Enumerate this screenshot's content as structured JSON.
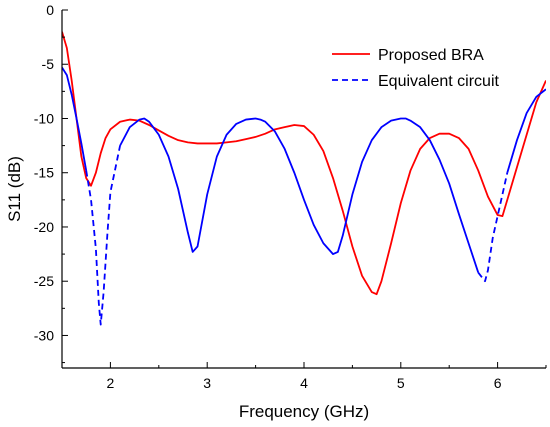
{
  "chart_data": {
    "type": "line",
    "title": "",
    "xlabel": "Frequency (GHz)",
    "ylabel": "S11 (dB)",
    "xlim": [
      1.5,
      6.5
    ],
    "ylim": [
      -33,
      0
    ],
    "xticks": [
      2,
      3,
      4,
      5,
      6
    ],
    "yticks": [
      0,
      -5,
      -10,
      -15,
      -20,
      -25,
      -30
    ],
    "grid": false,
    "legend_position": "top-right",
    "series": [
      {
        "name": "Proposed BRA",
        "color": "#ff0000",
        "dash": "solid",
        "x": [
          1.5,
          1.55,
          1.6,
          1.65,
          1.7,
          1.75,
          1.8,
          1.85,
          1.9,
          1.95,
          2.0,
          2.1,
          2.2,
          2.3,
          2.4,
          2.5,
          2.6,
          2.7,
          2.8,
          2.9,
          3.0,
          3.1,
          3.2,
          3.3,
          3.4,
          3.5,
          3.6,
          3.7,
          3.8,
          3.9,
          4.0,
          4.1,
          4.2,
          4.3,
          4.4,
          4.5,
          4.6,
          4.7,
          4.75,
          4.8,
          4.9,
          5.0,
          5.1,
          5.2,
          5.3,
          5.4,
          5.5,
          5.6,
          5.7,
          5.8,
          5.9,
          6.0,
          6.05,
          6.1,
          6.2,
          6.3,
          6.4,
          6.5
        ],
        "y": [
          -2.0,
          -3.5,
          -6.5,
          -10.0,
          -13.5,
          -15.5,
          -16.2,
          -15.0,
          -13.2,
          -11.8,
          -11.0,
          -10.3,
          -10.1,
          -10.2,
          -10.6,
          -11.1,
          -11.6,
          -12.0,
          -12.2,
          -12.3,
          -12.3,
          -12.3,
          -12.2,
          -12.1,
          -11.9,
          -11.7,
          -11.4,
          -11.0,
          -10.8,
          -10.6,
          -10.7,
          -11.5,
          -13.0,
          -15.5,
          -18.5,
          -21.8,
          -24.5,
          -26.0,
          -26.2,
          -25.0,
          -21.5,
          -17.8,
          -14.8,
          -12.8,
          -11.8,
          -11.4,
          -11.4,
          -11.8,
          -12.8,
          -14.8,
          -17.2,
          -18.9,
          -19.0,
          -17.5,
          -14.5,
          -11.5,
          -8.5,
          -6.5
        ]
      },
      {
        "name": "Equivalent circuit",
        "color": "#0000ff",
        "dash": "dashed-and-solid",
        "x": [
          1.5,
          1.55,
          1.6,
          1.65,
          1.7,
          1.75,
          1.8,
          1.85,
          1.88,
          1.9,
          1.93,
          1.97,
          2.0,
          2.1,
          2.2,
          2.3,
          2.35,
          2.4,
          2.5,
          2.6,
          2.7,
          2.8,
          2.85,
          2.9,
          3.0,
          3.1,
          3.2,
          3.3,
          3.4,
          3.5,
          3.55,
          3.6,
          3.7,
          3.8,
          3.9,
          4.0,
          4.1,
          4.2,
          4.3,
          4.35,
          4.4,
          4.5,
          4.6,
          4.7,
          4.8,
          4.9,
          5.0,
          5.05,
          5.1,
          5.2,
          5.3,
          5.4,
          5.5,
          5.6,
          5.7,
          5.8,
          5.87,
          5.9,
          5.95,
          6.0,
          6.05,
          6.1,
          6.2,
          6.3,
          6.4,
          6.5
        ],
        "y": [
          -5.3,
          -6.0,
          -7.8,
          -10.0,
          -12.3,
          -14.8,
          -17.5,
          -22.0,
          -27.0,
          -29.0,
          -26.0,
          -20.5,
          -16.8,
          -12.5,
          -10.8,
          -10.1,
          -10.0,
          -10.3,
          -11.5,
          -13.5,
          -16.5,
          -20.5,
          -22.3,
          -21.8,
          -17.0,
          -13.5,
          -11.5,
          -10.5,
          -10.1,
          -10.0,
          -10.1,
          -10.3,
          -11.2,
          -12.8,
          -15.0,
          -17.5,
          -19.8,
          -21.5,
          -22.5,
          -22.3,
          -20.8,
          -17.0,
          -14.0,
          -12.0,
          -10.8,
          -10.2,
          -10.0,
          -10.0,
          -10.2,
          -10.8,
          -12.0,
          -13.8,
          -16.0,
          -18.8,
          -21.5,
          -24.2,
          -25.0,
          -24.0,
          -21.0,
          -19.0,
          -17.0,
          -15.0,
          -12.0,
          -9.5,
          -8.0,
          -7.3
        ]
      }
    ]
  }
}
